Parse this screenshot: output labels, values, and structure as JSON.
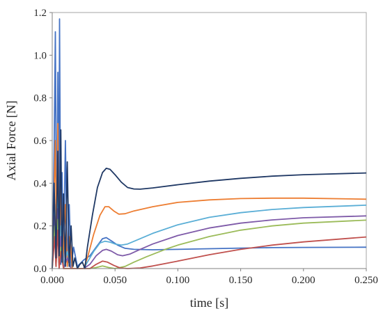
{
  "chart_data": {
    "type": "line",
    "title": "",
    "xlabel": "time [s]",
    "ylabel": "Axial Force [N]",
    "xlim": [
      0,
      0.25
    ],
    "ylim": [
      0,
      1.2
    ],
    "x_ticks": [
      "0.000",
      "0.050",
      "0.100",
      "0.150",
      "0.200",
      "0.250"
    ],
    "y_ticks": [
      "0.0",
      "0.2",
      "0.4",
      "0.6",
      "0.8",
      "1.0",
      "1.2"
    ],
    "grid": false,
    "legend": "none",
    "series": [
      {
        "color": "#4472c4",
        "points": [
          [
            0,
            0
          ],
          [
            0.0015,
            0.55
          ],
          [
            0.0025,
            1.11
          ],
          [
            0.0035,
            0.05
          ],
          [
            0.0045,
            0.92
          ],
          [
            0.0052,
            0.03
          ],
          [
            0.0058,
            1.17
          ],
          [
            0.0068,
            0.02
          ],
          [
            0.0078,
            0.45
          ],
          [
            0.009,
            0.02
          ],
          [
            0.0105,
            0.6
          ],
          [
            0.012,
            0.01
          ],
          [
            0.0135,
            0.3
          ],
          [
            0.015,
            0.01
          ],
          [
            0.017,
            0.1
          ],
          [
            0.02,
            0.01
          ],
          [
            0.025,
            0.04
          ],
          [
            0.03,
            0.06
          ],
          [
            0.035,
            0.1
          ],
          [
            0.04,
            0.14
          ],
          [
            0.043,
            0.145
          ],
          [
            0.047,
            0.13
          ],
          [
            0.052,
            0.11
          ],
          [
            0.058,
            0.095
          ],
          [
            0.065,
            0.09
          ],
          [
            0.08,
            0.088
          ],
          [
            0.1,
            0.09
          ],
          [
            0.125,
            0.093
          ],
          [
            0.15,
            0.096
          ],
          [
            0.175,
            0.098
          ],
          [
            0.2,
            0.099
          ],
          [
            0.25,
            0.1
          ]
        ]
      },
      {
        "color": "#ed7d31",
        "points": [
          [
            0,
            0
          ],
          [
            0.0025,
            0.6
          ],
          [
            0.0035,
            0.05
          ],
          [
            0.0045,
            0.68
          ],
          [
            0.0055,
            0.04
          ],
          [
            0.007,
            0.38
          ],
          [
            0.0085,
            0.02
          ],
          [
            0.0105,
            0.3
          ],
          [
            0.012,
            0.01
          ],
          [
            0.014,
            0.15
          ],
          [
            0.016,
            0
          ],
          [
            0.025,
            0
          ],
          [
            0.028,
            0.05
          ],
          [
            0.033,
            0.16
          ],
          [
            0.038,
            0.25
          ],
          [
            0.042,
            0.29
          ],
          [
            0.045,
            0.29
          ],
          [
            0.049,
            0.27
          ],
          [
            0.053,
            0.255
          ],
          [
            0.058,
            0.257
          ],
          [
            0.065,
            0.27
          ],
          [
            0.08,
            0.29
          ],
          [
            0.1,
            0.31
          ],
          [
            0.125,
            0.322
          ],
          [
            0.15,
            0.328
          ],
          [
            0.175,
            0.33
          ],
          [
            0.2,
            0.33
          ],
          [
            0.25,
            0.325
          ]
        ]
      },
      {
        "color": "#5aaed6",
        "points": [
          [
            0,
            0
          ],
          [
            0.002,
            0.3
          ],
          [
            0.003,
            0.02
          ],
          [
            0.0045,
            0.35
          ],
          [
            0.0055,
            0.02
          ],
          [
            0.007,
            0.2
          ],
          [
            0.009,
            0.01
          ],
          [
            0.012,
            0.08
          ],
          [
            0.015,
            0
          ],
          [
            0.025,
            0
          ],
          [
            0.028,
            0.03
          ],
          [
            0.033,
            0.08
          ],
          [
            0.038,
            0.12
          ],
          [
            0.042,
            0.128
          ],
          [
            0.046,
            0.124
          ],
          [
            0.05,
            0.115
          ],
          [
            0.055,
            0.11
          ],
          [
            0.06,
            0.115
          ],
          [
            0.07,
            0.14
          ],
          [
            0.08,
            0.165
          ],
          [
            0.1,
            0.205
          ],
          [
            0.125,
            0.24
          ],
          [
            0.15,
            0.262
          ],
          [
            0.175,
            0.277
          ],
          [
            0.2,
            0.286
          ],
          [
            0.25,
            0.297
          ]
        ]
      },
      {
        "color": "#7e5aa8",
        "points": [
          [
            0,
            0
          ],
          [
            0.002,
            0.25
          ],
          [
            0.003,
            0.01
          ],
          [
            0.0045,
            0.28
          ],
          [
            0.0055,
            0.01
          ],
          [
            0.007,
            0.15
          ],
          [
            0.009,
            0
          ],
          [
            0.012,
            0.05
          ],
          [
            0.015,
            0
          ],
          [
            0.025,
            0
          ],
          [
            0.03,
            0.02
          ],
          [
            0.035,
            0.06
          ],
          [
            0.04,
            0.085
          ],
          [
            0.043,
            0.09
          ],
          [
            0.047,
            0.082
          ],
          [
            0.052,
            0.065
          ],
          [
            0.056,
            0.06
          ],
          [
            0.062,
            0.068
          ],
          [
            0.07,
            0.09
          ],
          [
            0.08,
            0.115
          ],
          [
            0.1,
            0.155
          ],
          [
            0.125,
            0.19
          ],
          [
            0.15,
            0.213
          ],
          [
            0.175,
            0.228
          ],
          [
            0.2,
            0.238
          ],
          [
            0.25,
            0.247
          ]
        ]
      },
      {
        "color": "#9bbb59",
        "points": [
          [
            0,
            0
          ],
          [
            0.002,
            0.2
          ],
          [
            0.003,
            0.01
          ],
          [
            0.0045,
            0.23
          ],
          [
            0.0055,
            0.01
          ],
          [
            0.007,
            0.1
          ],
          [
            0.009,
            0
          ],
          [
            0.03,
            0
          ],
          [
            0.035,
            0.005
          ],
          [
            0.04,
            0.012
          ],
          [
            0.045,
            0.005
          ],
          [
            0.05,
            0
          ],
          [
            0.058,
            0.01
          ],
          [
            0.065,
            0.03
          ],
          [
            0.075,
            0.055
          ],
          [
            0.09,
            0.09
          ],
          [
            0.1,
            0.11
          ],
          [
            0.125,
            0.15
          ],
          [
            0.15,
            0.18
          ],
          [
            0.175,
            0.2
          ],
          [
            0.2,
            0.213
          ],
          [
            0.25,
            0.227
          ]
        ]
      },
      {
        "color": "#c0504d",
        "points": [
          [
            0,
            0
          ],
          [
            0.002,
            0.15
          ],
          [
            0.003,
            0.01
          ],
          [
            0.0045,
            0.18
          ],
          [
            0.0055,
            0
          ],
          [
            0.007,
            0.08
          ],
          [
            0.009,
            0
          ],
          [
            0.03,
            0
          ],
          [
            0.035,
            0.02
          ],
          [
            0.04,
            0.035
          ],
          [
            0.044,
            0.03
          ],
          [
            0.049,
            0.015
          ],
          [
            0.054,
            0.003
          ],
          [
            0.06,
            0
          ],
          [
            0.07,
            0.003
          ],
          [
            0.08,
            0.012
          ],
          [
            0.1,
            0.035
          ],
          [
            0.125,
            0.065
          ],
          [
            0.15,
            0.09
          ],
          [
            0.175,
            0.11
          ],
          [
            0.2,
            0.125
          ],
          [
            0.25,
            0.148
          ]
        ]
      },
      {
        "color": "#1f3864",
        "points": [
          [
            0,
            0
          ],
          [
            0.0015,
            0.4
          ],
          [
            0.003,
            0.05
          ],
          [
            0.0045,
            0.55
          ],
          [
            0.0055,
            0.06
          ],
          [
            0.0068,
            0.65
          ],
          [
            0.0078,
            0.03
          ],
          [
            0.009,
            0.35
          ],
          [
            0.0105,
            0.01
          ],
          [
            0.012,
            0.5
          ],
          [
            0.0135,
            0.01
          ],
          [
            0.015,
            0.2
          ],
          [
            0.0165,
            0.01
          ],
          [
            0.018,
            0.05
          ],
          [
            0.02,
            0
          ],
          [
            0.022,
            0.02
          ],
          [
            0.024,
            0.03
          ],
          [
            0.026,
            0
          ],
          [
            0.028,
            0.1
          ],
          [
            0.032,
            0.25
          ],
          [
            0.036,
            0.38
          ],
          [
            0.04,
            0.45
          ],
          [
            0.043,
            0.47
          ],
          [
            0.046,
            0.465
          ],
          [
            0.05,
            0.44
          ],
          [
            0.055,
            0.405
          ],
          [
            0.06,
            0.38
          ],
          [
            0.065,
            0.373
          ],
          [
            0.07,
            0.372
          ],
          [
            0.08,
            0.378
          ],
          [
            0.1,
            0.393
          ],
          [
            0.125,
            0.41
          ],
          [
            0.15,
            0.423
          ],
          [
            0.175,
            0.433
          ],
          [
            0.2,
            0.44
          ],
          [
            0.25,
            0.448
          ]
        ]
      }
    ]
  }
}
